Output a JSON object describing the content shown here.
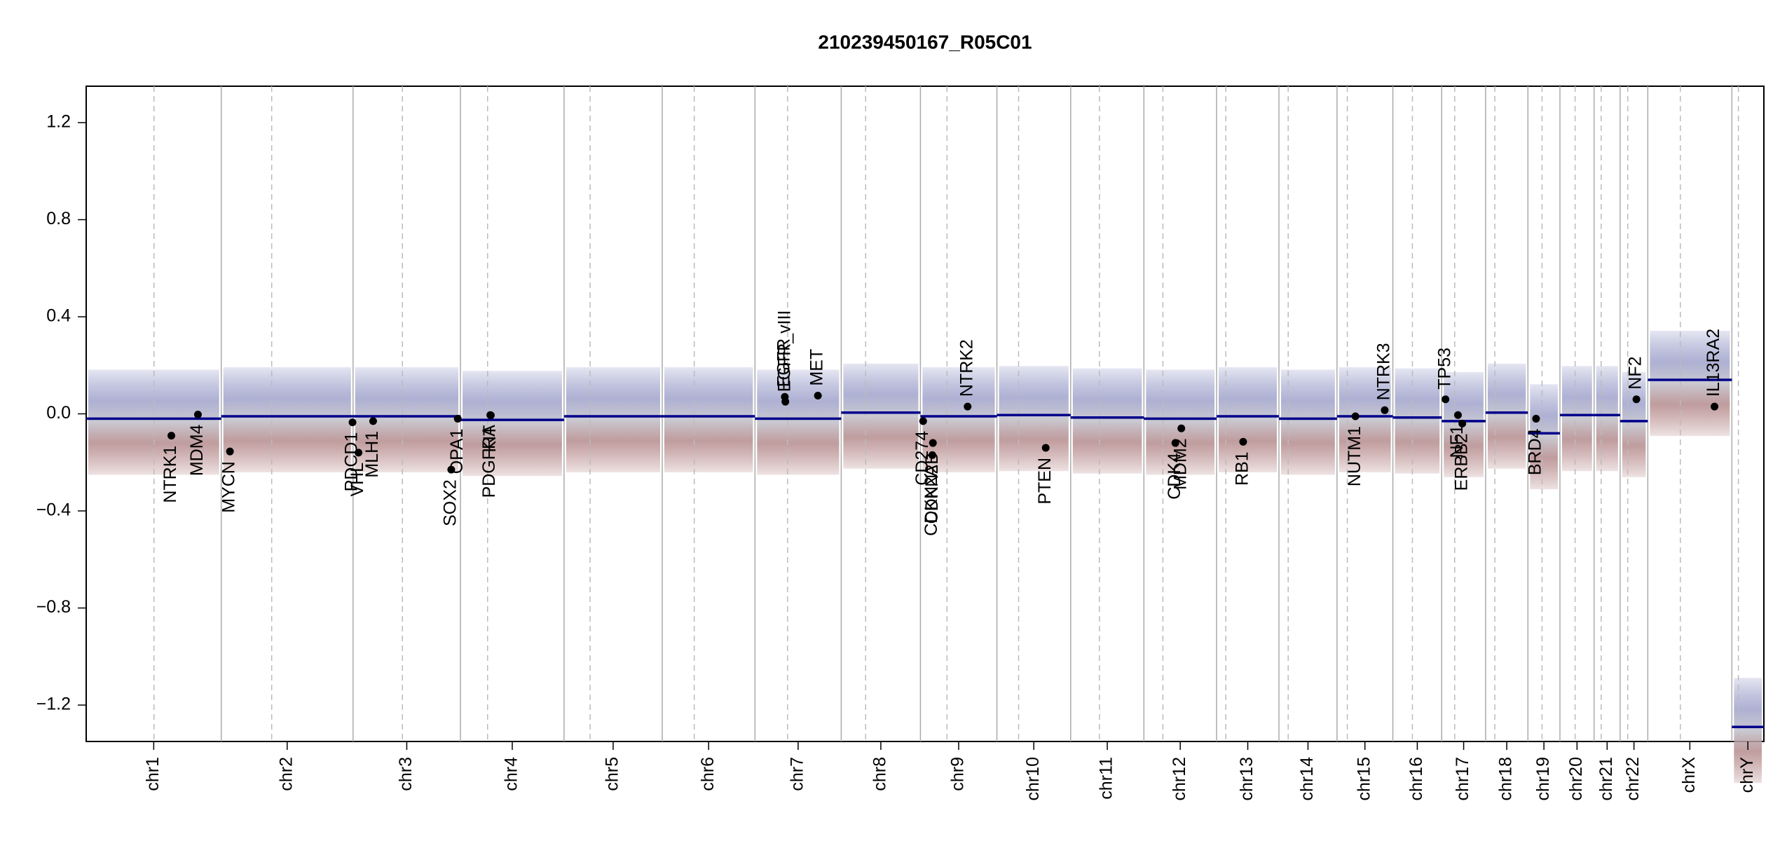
{
  "chart_data": {
    "type": "cnv",
    "title": "210239450167_R05C01",
    "xlim": [
      0,
      3093
    ],
    "ylim": [
      -1.35,
      1.35
    ],
    "yticks": [
      {
        "value": -1.2,
        "label": "−1.2"
      },
      {
        "value": -0.8,
        "label": "−0.8"
      },
      {
        "value": -0.4,
        "label": "−0.4"
      },
      {
        "value": 0,
        "label": "0.0"
      },
      0.4,
      0.8,
      1.2
    ],
    "chromosomes": [
      {
        "name": "chr1",
        "start": 0,
        "end": 249,
        "centromere": 125
      },
      {
        "name": "chr2",
        "start": 249,
        "end": 492,
        "centromere": 342
      },
      {
        "name": "chr3",
        "start": 492,
        "end": 690,
        "centromere": 583
      },
      {
        "name": "chr4",
        "start": 690,
        "end": 881,
        "centromere": 740
      },
      {
        "name": "chr5",
        "start": 881,
        "end": 1062,
        "centromere": 929
      },
      {
        "name": "chr6",
        "start": 1062,
        "end": 1233,
        "centromere": 1121
      },
      {
        "name": "chr7",
        "start": 1233,
        "end": 1392,
        "centromere": 1293
      },
      {
        "name": "chr8",
        "start": 1392,
        "end": 1538,
        "centromere": 1437
      },
      {
        "name": "chr9",
        "start": 1538,
        "end": 1679,
        "centromere": 1587
      },
      {
        "name": "chr10",
        "start": 1679,
        "end": 1815,
        "centromere": 1719
      },
      {
        "name": "chr11",
        "start": 1815,
        "end": 1950,
        "centromere": 1868
      },
      {
        "name": "chr12",
        "start": 1950,
        "end": 2084,
        "centromere": 1985
      },
      {
        "name": "chr13",
        "start": 2084,
        "end": 2199,
        "centromere": 2101
      },
      {
        "name": "chr14",
        "start": 2199,
        "end": 2306,
        "centromere": 2216
      },
      {
        "name": "chr15",
        "start": 2306,
        "end": 2409,
        "centromere": 2325
      },
      {
        "name": "chr16",
        "start": 2409,
        "end": 2499,
        "centromere": 2445
      },
      {
        "name": "chr17",
        "start": 2499,
        "end": 2580,
        "centromere": 2523
      },
      {
        "name": "chr18",
        "start": 2580,
        "end": 2658,
        "centromere": 2597
      },
      {
        "name": "chr19",
        "start": 2658,
        "end": 2717,
        "centromere": 2684
      },
      {
        "name": "chr20",
        "start": 2717,
        "end": 2780,
        "centromere": 2745
      },
      {
        "name": "chr21",
        "start": 2780,
        "end": 2828,
        "centromere": 2793
      },
      {
        "name": "chr22",
        "start": 2828,
        "end": 2879,
        "centromere": 2842
      },
      {
        "name": "chrX",
        "start": 2879,
        "end": 3034,
        "centromere": 2939
      },
      {
        "name": "chrY",
        "start": 3034,
        "end": 3093,
        "centromere": 3046
      }
    ],
    "segments": [
      {
        "start": 0,
        "end": 249,
        "value": -0.02
      },
      {
        "start": 249,
        "end": 492,
        "value": -0.01
      },
      {
        "start": 492,
        "end": 690,
        "value": -0.01
      },
      {
        "start": 690,
        "end": 881,
        "value": -0.025
      },
      {
        "start": 881,
        "end": 1062,
        "value": -0.01
      },
      {
        "start": 1062,
        "end": 1233,
        "value": -0.01
      },
      {
        "start": 1233,
        "end": 1392,
        "value": -0.02
      },
      {
        "start": 1392,
        "end": 1538,
        "value": 0.005
      },
      {
        "start": 1538,
        "end": 1679,
        "value": -0.01
      },
      {
        "start": 1679,
        "end": 1815,
        "value": -0.005
      },
      {
        "start": 1815,
        "end": 1950,
        "value": -0.015
      },
      {
        "start": 1950,
        "end": 2084,
        "value": -0.02
      },
      {
        "start": 2084,
        "end": 2199,
        "value": -0.01
      },
      {
        "start": 2199,
        "end": 2306,
        "value": -0.02
      },
      {
        "start": 2306,
        "end": 2409,
        "value": -0.01
      },
      {
        "start": 2409,
        "end": 2499,
        "value": -0.015
      },
      {
        "start": 2499,
        "end": 2580,
        "value": -0.03
      },
      {
        "start": 2580,
        "end": 2658,
        "value": 0.005
      },
      {
        "start": 2658,
        "end": 2717,
        "value": -0.08
      },
      {
        "start": 2717,
        "end": 2780,
        "value": -0.005
      },
      {
        "start": 2780,
        "end": 2828,
        "value": -0.005
      },
      {
        "start": 2828,
        "end": 2879,
        "value": -0.03
      },
      {
        "start": 2879,
        "end": 3034,
        "value": 0.14
      },
      {
        "start": 3034,
        "end": 3093,
        "value": -1.29
      }
    ],
    "segment_color": "#00008b",
    "gene_color": "#000000",
    "genes": [
      {
        "name": "NTRK1",
        "x": 157,
        "value": -0.09
      },
      {
        "name": "MDM4",
        "x": 206,
        "value": -0.003
      },
      {
        "name": "MYCN",
        "x": 265,
        "value": -0.155
      },
      {
        "name": "PDCD1",
        "x": 491,
        "value": -0.035
      },
      {
        "name": "VHL",
        "x": 502,
        "value": -0.16
      },
      {
        "name": "MLH1",
        "x": 529,
        "value": -0.03
      },
      {
        "name": "SOX2",
        "x": 673,
        "value": -0.23
      },
      {
        "name": "OPA1",
        "x": 685,
        "value": -0.02
      },
      {
        "name": "PDGFRA",
        "x": 745,
        "value": -0.005
      },
      {
        "name": "KIT",
        "x": 746,
        "value": -0.006
      },
      {
        "name": "EGFR",
        "x": 1288,
        "value": 0.07
      },
      {
        "name": "EGFR_vIII",
        "x": 1289,
        "value": 0.05
      },
      {
        "name": "MET",
        "x": 1349,
        "value": 0.075
      },
      {
        "name": "CD274",
        "x": 1543,
        "value": -0.03
      },
      {
        "name": "CDKN2A",
        "x": 1560,
        "value": -0.17
      },
      {
        "name": "CDKN2B",
        "x": 1561,
        "value": -0.12
      },
      {
        "name": "NTRK2",
        "x": 1625,
        "value": 0.03
      },
      {
        "name": "PTEN",
        "x": 1769,
        "value": -0.14
      },
      {
        "name": "CDK4",
        "x": 2008,
        "value": -0.12
      },
      {
        "name": "MDM2",
        "x": 2019,
        "value": -0.06
      },
      {
        "name": "RB1",
        "x": 2133,
        "value": -0.115
      },
      {
        "name": "NUTM1",
        "x": 2340,
        "value": -0.01
      },
      {
        "name": "NTRK3",
        "x": 2394,
        "value": 0.015
      },
      {
        "name": "TP53",
        "x": 2506,
        "value": 0.06
      },
      {
        "name": "NF1",
        "x": 2529,
        "value": -0.005
      },
      {
        "name": "ERBB2",
        "x": 2537,
        "value": -0.04
      },
      {
        "name": "BRD4",
        "x": 2673,
        "value": -0.02
      },
      {
        "name": "NF2",
        "x": 2858,
        "value": 0.06
      },
      {
        "name": "IL13RA2",
        "x": 3002,
        "value": 0.03
      }
    ]
  }
}
